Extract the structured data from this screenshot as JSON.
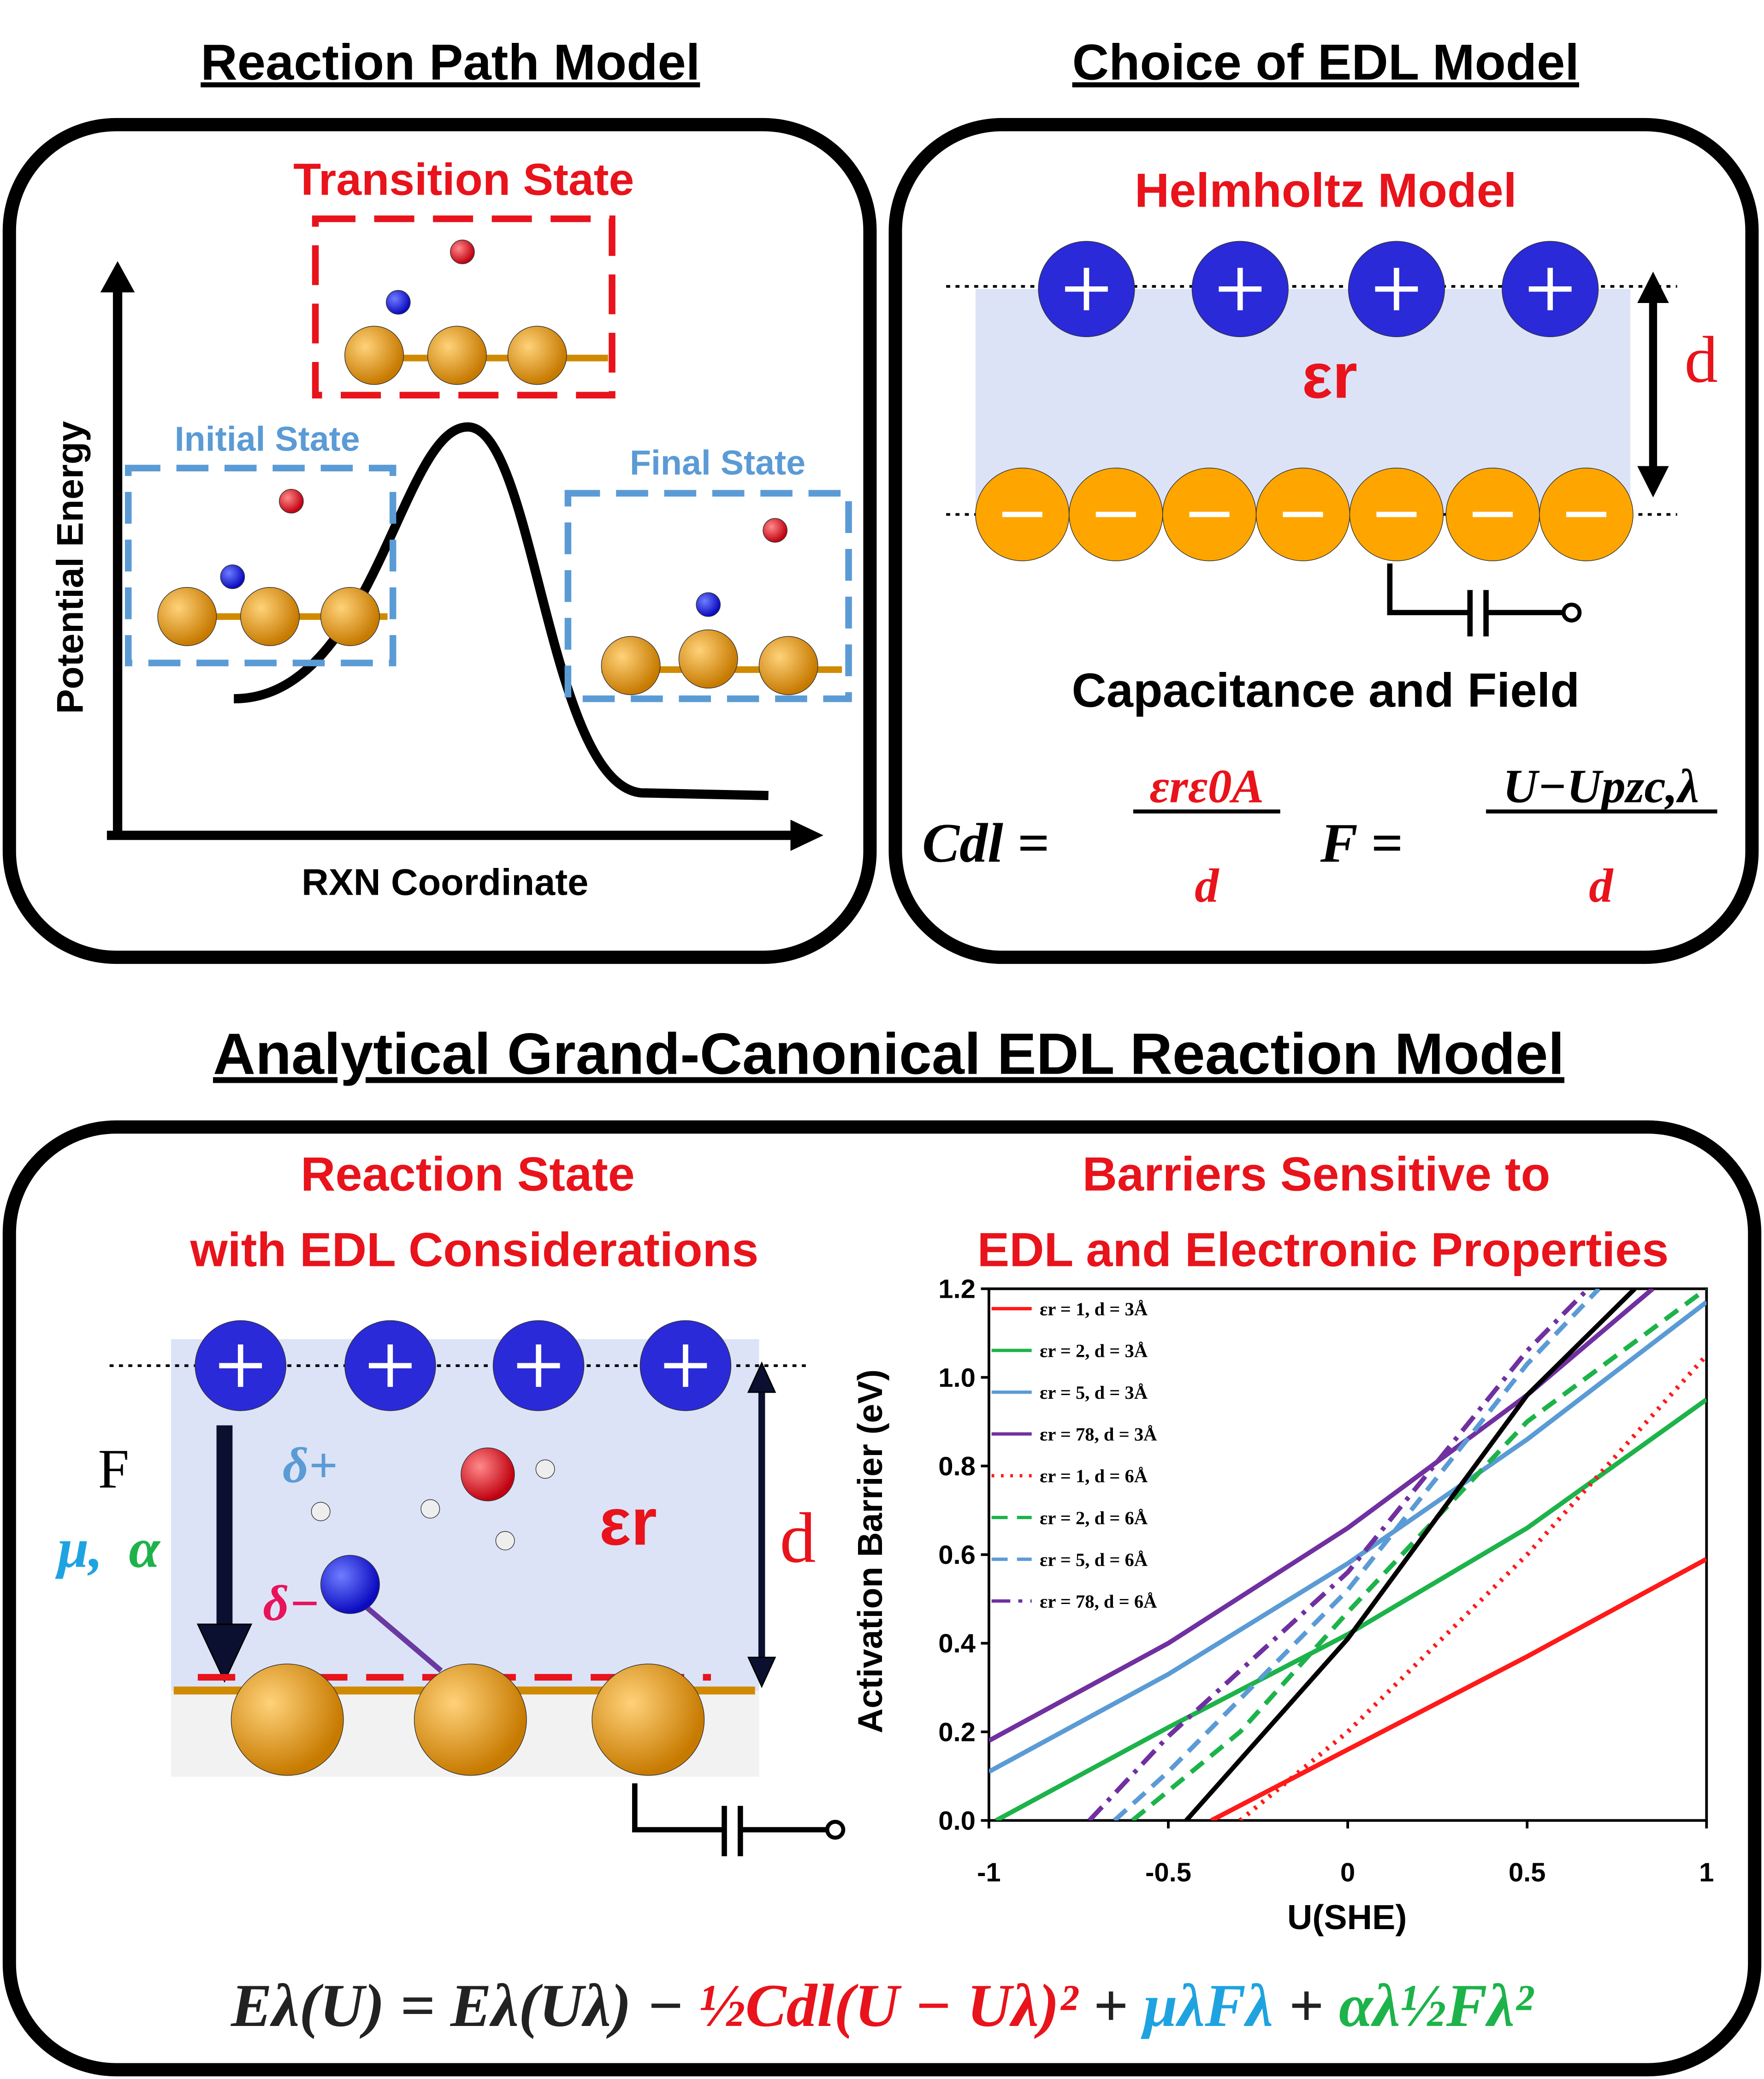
{
  "reaction_path": {
    "title": "Reaction Path Model",
    "transition_state": "Transition State",
    "initial_state": "Initial State",
    "final_state": "Final State",
    "y_axis": "Potential Energy",
    "x_axis": "RXN Coordinate"
  },
  "edl_model": {
    "title": "Choice of EDL Model",
    "model": "Helmholtz Model",
    "epsilon": "εr",
    "d": "d",
    "caption": "Capacitance and Field",
    "cdl": {
      "lhs": "Cdl =",
      "numerator": "εrε0A",
      "denominator": "d"
    },
    "field": {
      "lhs": "F =",
      "numerator": "U−Upzc,λ",
      "denominator": "d"
    }
  },
  "main_title": "Analytical Grand-Canonical EDL Reaction Model",
  "reaction_state": {
    "title": [
      "Reaction State",
      "with EDL Considerations"
    ],
    "field": "F",
    "mu": "μ,",
    "alpha": "α",
    "delta_plus": "δ+",
    "delta_minus": "δ−",
    "epsilon": "εr",
    "d": "d"
  },
  "barriers": {
    "title": [
      "Barriers Sensitive to",
      "EDL and Electronic Properties"
    ]
  },
  "equation": [
    {
      "text": "Eλ(U) = Eλ(Uλ) − ",
      "color": "#222222"
    },
    {
      "text": "½Cdl(U − Uλ)²",
      "color": "#e8131b"
    },
    {
      "text": " + ",
      "color": "#222222"
    },
    {
      "text": "μλFλ",
      "color": "#1fa3e0"
    },
    {
      "text": " + ",
      "color": "#222222"
    },
    {
      "text": "αλ½Fλ²",
      "color": "#1db34a"
    }
  ],
  "chart_data": {
    "type": "line",
    "x_label": "U(SHE)",
    "y_label": "Activation Barrier (eV)",
    "xlim": [
      -1,
      1
    ],
    "ylim": [
      0,
      1.2
    ],
    "xticks": [
      -1,
      -0.5,
      0,
      0.5,
      1
    ],
    "yticks": [
      {
        "value": 0,
        "label": "0.0"
      },
      {
        "value": 0.2,
        "label": "0.2"
      },
      {
        "value": 0.4,
        "label": "0.4"
      },
      {
        "value": 0.6,
        "label": "0.6"
      },
      {
        "value": 0.8,
        "label": "0.8"
      },
      {
        "value": 1,
        "label": "1.0"
      },
      {
        "value": 1.2,
        "label": "1.2"
      }
    ],
    "series": [
      {
        "name": "εr = 1, d = 3Å",
        "color": "#ff1a1a",
        "style": "solid",
        "x": [
          -0.38,
          0,
          0.5,
          1
        ],
        "values": [
          0,
          0.16,
          0.37,
          0.59
        ]
      },
      {
        "name": "εr = 2, d = 3Å",
        "color": "#1db34a",
        "style": "solid",
        "x": [
          -0.98,
          -0.5,
          0,
          0.5,
          1
        ],
        "values": [
          0,
          0.21,
          0.42,
          0.66,
          0.95
        ]
      },
      {
        "name": "εr = 5, d = 3Å",
        "color": "#5b9bd5",
        "style": "solid",
        "x": [
          -1,
          -0.5,
          0,
          0.5,
          1
        ],
        "values": [
          0.11,
          0.33,
          0.58,
          0.86,
          1.17
        ]
      },
      {
        "name": "εr = 78, d = 3Å",
        "color": "#7030a0",
        "style": "solid",
        "x": [
          -1,
          -0.5,
          0,
          0.5,
          0.85
        ],
        "values": [
          0.18,
          0.4,
          0.66,
          0.96,
          1.2
        ]
      },
      {
        "name": "εr = 1, d = 6Å",
        "color": "#ff1a1a",
        "style": "dotted",
        "x": [
          -0.3,
          0,
          0.5,
          1
        ],
        "values": [
          0,
          0.2,
          0.6,
          1.05
        ]
      },
      {
        "name": "εr = 2, d = 6Å",
        "color": "#1db34a",
        "style": "dashed",
        "x": [
          -0.6,
          -0.3,
          0,
          0.5,
          1
        ],
        "values": [
          0,
          0.2,
          0.47,
          0.9,
          1.2
        ]
      },
      {
        "name": "εr = 5, d = 6Å",
        "color": "#5b9bd5",
        "style": "dashed",
        "x": [
          -0.65,
          -0.5,
          0,
          0.5,
          0.7
        ],
        "values": [
          0,
          0.11,
          0.52,
          1.03,
          1.2
        ]
      },
      {
        "name": "εr = 78, d = 6Å",
        "color": "#7030a0",
        "style": "dashdot",
        "x": [
          -0.72,
          -0.5,
          0,
          0.5,
          0.67
        ],
        "values": [
          0,
          0.19,
          0.56,
          1.06,
          1.2
        ]
      },
      {
        "color": "#000000",
        "style": "solid",
        "x": [
          -0.45,
          0,
          0.5,
          0.8
        ],
        "values": [
          0,
          0.41,
          0.96,
          1.2
        ]
      }
    ]
  }
}
